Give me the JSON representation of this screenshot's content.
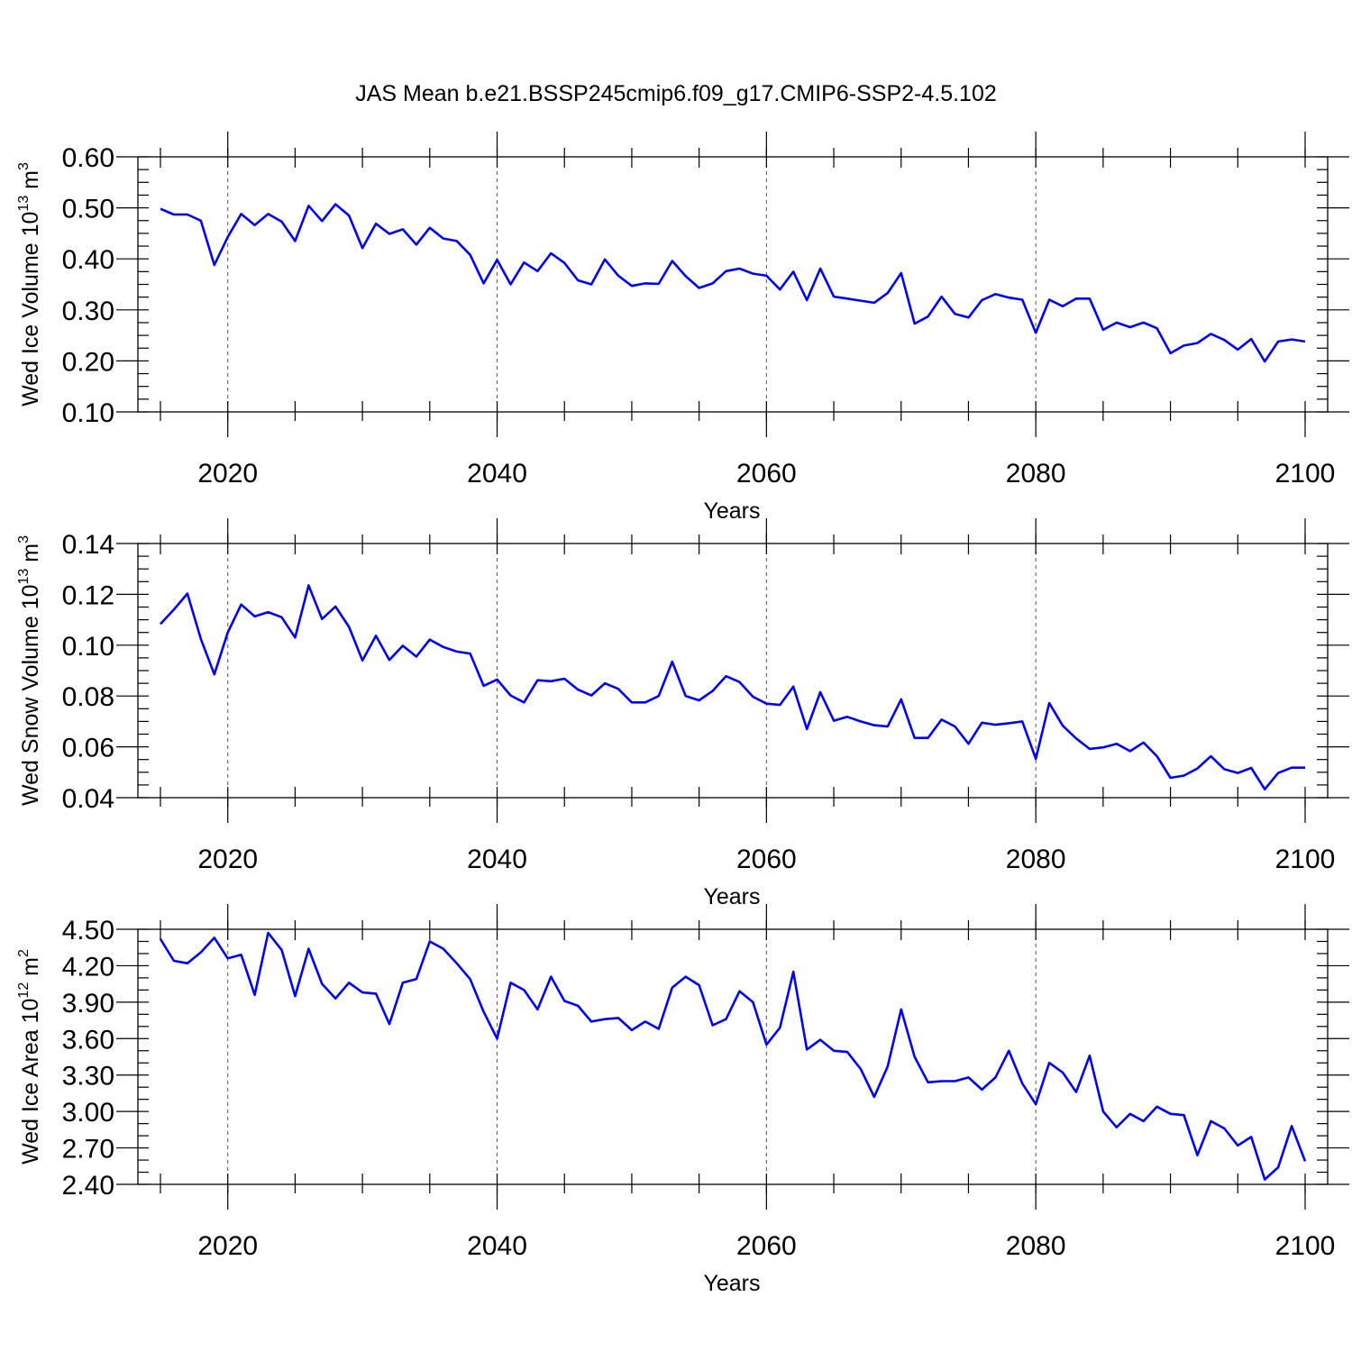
{
  "title": "JAS Mean b.e21.BSSP245cmip6.f09_g17.CMIP6-SSP2-4.5.102",
  "colors": {
    "line": "#0000ff",
    "axis": "#000000",
    "grid": "#555555"
  },
  "chart_data": [
    {
      "type": "line",
      "ylabel": "Wed Ice Volume 10",
      "ylabel_exp": "13",
      "ylabel_unit": " m",
      "ylabel_unit_exp": "3",
      "xlabel": "Years",
      "xlim": [
        2015,
        2100
      ],
      "ylim": [
        0.1,
        0.6
      ],
      "yticks": [
        0.1,
        0.2,
        0.3,
        0.4,
        0.5,
        0.6
      ],
      "ytick_labels": [
        "0.10",
        "0.20",
        "0.30",
        "0.40",
        "0.50",
        "0.60"
      ],
      "yminor_step": 0.025,
      "xticks": [
        2020,
        2040,
        2060,
        2080,
        2100
      ],
      "xtick_labels": [
        "2020",
        "2040",
        "2060",
        "2080",
        "2100"
      ],
      "grid": "dashed vertical at major x ticks",
      "x_start": 2015,
      "values": [
        0.498,
        0.487,
        0.487,
        0.475,
        0.388,
        0.443,
        0.488,
        0.466,
        0.488,
        0.473,
        0.435,
        0.504,
        0.474,
        0.507,
        0.485,
        0.421,
        0.469,
        0.449,
        0.458,
        0.428,
        0.461,
        0.44,
        0.435,
        0.408,
        0.352,
        0.398,
        0.35,
        0.393,
        0.376,
        0.411,
        0.392,
        0.358,
        0.35,
        0.399,
        0.367,
        0.347,
        0.352,
        0.351,
        0.396,
        0.366,
        0.343,
        0.352,
        0.376,
        0.381,
        0.371,
        0.367,
        0.34,
        0.375,
        0.319,
        0.381,
        0.326,
        0.322,
        0.318,
        0.314,
        0.333,
        0.372,
        0.273,
        0.287,
        0.326,
        0.292,
        0.285,
        0.319,
        0.331,
        0.324,
        0.32,
        0.255,
        0.32,
        0.307,
        0.322,
        0.322,
        0.261,
        0.275,
        0.266,
        0.275,
        0.264,
        0.215,
        0.23,
        0.235,
        0.253,
        0.241,
        0.222,
        0.243,
        0.199,
        0.238,
        0.242,
        0.238
      ]
    },
    {
      "type": "line",
      "ylabel": "Wed Snow Volume 10",
      "ylabel_exp": "13",
      "ylabel_unit": " m",
      "ylabel_unit_exp": "3",
      "xlabel": "Years",
      "xlim": [
        2015,
        2100
      ],
      "ylim": [
        0.04,
        0.14
      ],
      "yticks": [
        0.04,
        0.06,
        0.08,
        0.1,
        0.12,
        0.14
      ],
      "ytick_labels": [
        "0.04",
        "0.06",
        "0.08",
        "0.10",
        "0.12",
        "0.14"
      ],
      "yminor_step": 0.005,
      "xticks": [
        2020,
        2040,
        2060,
        2080,
        2100
      ],
      "xtick_labels": [
        "2020",
        "2040",
        "2060",
        "2080",
        "2100"
      ],
      "grid": "dashed vertical at major x ticks",
      "x_start": 2015,
      "values": [
        0.1083,
        0.114,
        0.1203,
        0.1025,
        0.0885,
        0.105,
        0.116,
        0.1113,
        0.113,
        0.111,
        0.103,
        0.1235,
        0.1103,
        0.1152,
        0.1072,
        0.094,
        0.1037,
        0.0942,
        0.0998,
        0.0955,
        0.1022,
        0.0993,
        0.0975,
        0.0967,
        0.084,
        0.0865,
        0.0802,
        0.0775,
        0.0862,
        0.0858,
        0.0868,
        0.0825,
        0.0802,
        0.085,
        0.0828,
        0.0775,
        0.0775,
        0.08,
        0.0935,
        0.08,
        0.0783,
        0.082,
        0.0878,
        0.0855,
        0.0797,
        0.077,
        0.0765,
        0.0837,
        0.067,
        0.0815,
        0.0703,
        0.0718,
        0.07,
        0.0685,
        0.068,
        0.0787,
        0.0635,
        0.0635,
        0.0707,
        0.068,
        0.0612,
        0.0695,
        0.0687,
        0.0693,
        0.07,
        0.0553,
        0.0772,
        0.0683,
        0.0633,
        0.0592,
        0.0598,
        0.0612,
        0.0583,
        0.0617,
        0.0563,
        0.0478,
        0.0487,
        0.0515,
        0.0563,
        0.0512,
        0.0497,
        0.0517,
        0.0433,
        0.0497,
        0.0518,
        0.0518
      ]
    },
    {
      "type": "line",
      "ylabel": "Wed Ice Area 10",
      "ylabel_exp": "12",
      "ylabel_unit": " m",
      "ylabel_unit_exp": "2",
      "xlabel": "Years",
      "xlim": [
        2015,
        2100
      ],
      "ylim": [
        2.4,
        4.5
      ],
      "yticks": [
        2.4,
        2.7,
        3.0,
        3.3,
        3.6,
        3.9,
        4.2,
        4.5
      ],
      "ytick_labels": [
        "2.40",
        "2.70",
        "3.00",
        "3.30",
        "3.60",
        "3.90",
        "4.20",
        "4.50"
      ],
      "yminor_step": 0.1,
      "xticks": [
        2020,
        2040,
        2060,
        2080,
        2100
      ],
      "xtick_labels": [
        "2020",
        "2040",
        "2060",
        "2080",
        "2100"
      ],
      "grid": "dashed vertical at major x ticks",
      "x_start": 2015,
      "values": [
        4.42,
        4.24,
        4.22,
        4.31,
        4.43,
        4.26,
        4.29,
        3.96,
        4.47,
        4.33,
        3.95,
        4.34,
        4.05,
        3.93,
        4.06,
        3.98,
        3.97,
        3.72,
        4.06,
        4.09,
        4.4,
        4.34,
        4.22,
        4.09,
        3.82,
        3.6,
        4.06,
        4.0,
        3.84,
        4.11,
        3.91,
        3.87,
        3.74,
        3.76,
        3.77,
        3.67,
        3.74,
        3.68,
        4.02,
        4.11,
        4.04,
        3.71,
        3.76,
        3.99,
        3.9,
        3.55,
        3.69,
        4.15,
        3.51,
        3.59,
        3.5,
        3.49,
        3.35,
        3.12,
        3.37,
        3.84,
        3.45,
        3.24,
        3.25,
        3.25,
        3.28,
        3.18,
        3.28,
        3.5,
        3.23,
        3.06,
        3.4,
        3.32,
        3.16,
        3.46,
        3.0,
        2.87,
        2.98,
        2.92,
        3.04,
        2.98,
        2.97,
        2.64,
        2.92,
        2.86,
        2.72,
        2.79,
        2.44,
        2.54,
        2.88,
        2.59
      ]
    }
  ]
}
